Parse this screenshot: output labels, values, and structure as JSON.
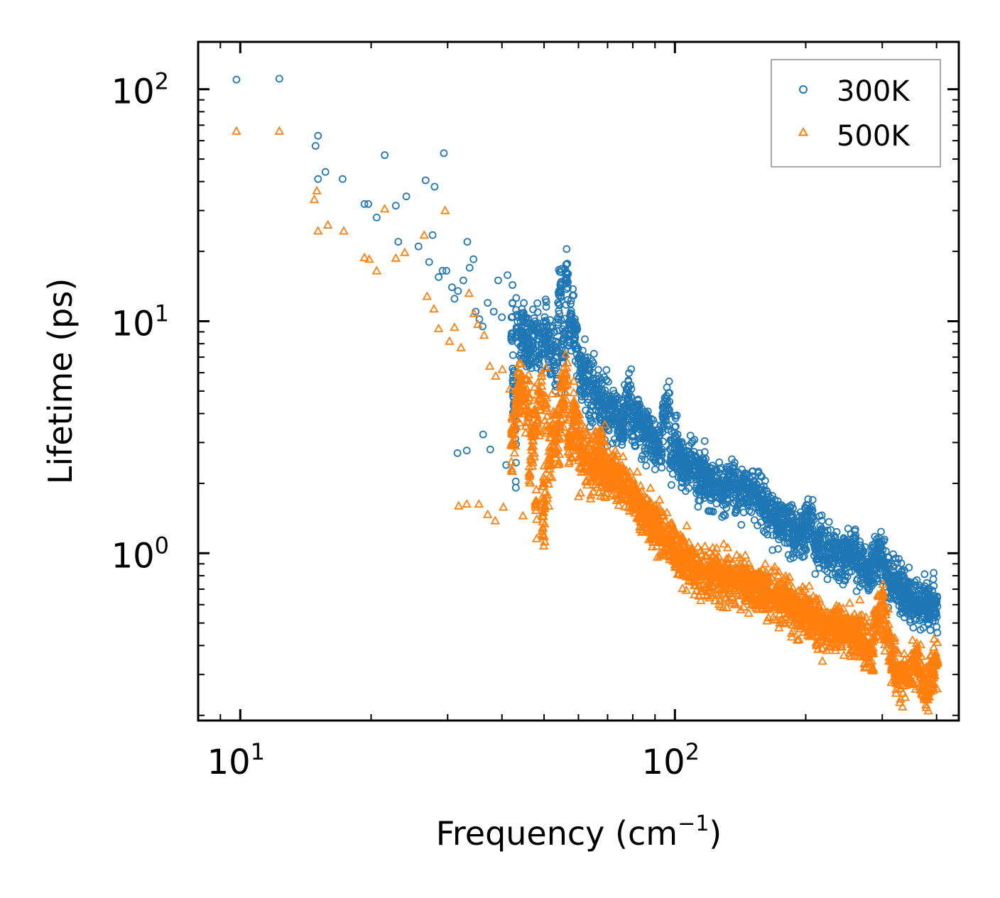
{
  "chart_data": {
    "type": "scatter",
    "xscale": "log",
    "yscale": "log",
    "xlim": [
      8,
      450
    ],
    "ylim": [
      0.19,
      160
    ],
    "xlabel": "Frequency (cm",
    "xlabel_sup": "−1",
    "xlabel_end": ")",
    "ylabel": "Lifetime (ps)",
    "x_ticks": [
      {
        "value": 10,
        "base": "10",
        "exp": "1"
      },
      {
        "value": 100,
        "base": "10",
        "exp": "2"
      }
    ],
    "y_ticks": [
      {
        "value": 1,
        "base": "10",
        "exp": "0"
      },
      {
        "value": 10,
        "base": "10",
        "exp": "1"
      },
      {
        "value": 100,
        "base": "10",
        "exp": "2"
      }
    ],
    "legend_position": "top-right",
    "series": [
      {
        "name": "300K",
        "marker": "circle",
        "color": "#1f77b4",
        "points": [
          [
            9.8,
            110
          ],
          [
            12.3,
            111
          ],
          [
            14.9,
            57
          ],
          [
            15.1,
            63
          ],
          [
            15.1,
            41
          ],
          [
            15.7,
            44
          ],
          [
            17.2,
            41
          ],
          [
            19.3,
            32
          ],
          [
            19.7,
            32
          ],
          [
            20.6,
            28
          ],
          [
            21.5,
            52
          ],
          [
            22.8,
            31.5
          ],
          [
            23.1,
            22
          ],
          [
            24.1,
            34.5
          ],
          [
            25.7,
            21
          ],
          [
            26.7,
            40.5
          ],
          [
            27.2,
            18
          ],
          [
            27.7,
            23.5
          ],
          [
            28.0,
            38
          ],
          [
            28.6,
            15.5
          ],
          [
            29.2,
            16.5
          ],
          [
            29.4,
            53
          ],
          [
            29.8,
            16.5
          ],
          [
            30.7,
            14
          ],
          [
            31.1,
            12.5
          ],
          [
            31.7,
            13.5
          ],
          [
            32.6,
            15
          ],
          [
            33.3,
            22
          ],
          [
            33.7,
            17
          ],
          [
            34.4,
            18.5
          ],
          [
            34.8,
            11
          ],
          [
            35.5,
            10.2
          ],
          [
            36.1,
            9.5
          ],
          [
            37.1,
            12
          ],
          [
            38.3,
            11
          ],
          [
            39.2,
            15
          ],
          [
            40.0,
            10.4
          ],
          [
            41.2,
            15.8
          ],
          [
            42.3,
            12
          ],
          [
            43.6,
            8.9
          ],
          [
            44.3,
            7.8
          ],
          [
            45.6,
            9.2
          ],
          [
            47.1,
            8.1
          ],
          [
            48.3,
            8.9
          ],
          [
            49.6,
            7.3
          ],
          [
            50.8,
            9.5
          ],
          [
            52.4,
            7.5
          ],
          [
            53.7,
            6.6
          ],
          [
            54.8,
            14.8
          ],
          [
            55.9,
            8.6
          ],
          [
            56.8,
            16
          ],
          [
            57.9,
            10.2
          ],
          [
            59.4,
            7.6
          ],
          [
            61.2,
            5.5
          ],
          [
            63.1,
            5.4
          ],
          [
            65.2,
            4.8
          ],
          [
            67.0,
            4.6
          ],
          [
            69.1,
            4.2
          ],
          [
            71.8,
            4.1
          ],
          [
            74.5,
            3.9
          ],
          [
            77.3,
            3.8
          ],
          [
            79.4,
            5.1
          ],
          [
            81.7,
            3.6
          ],
          [
            84.2,
            3.3
          ],
          [
            87.8,
            3.1
          ],
          [
            90.3,
            3.0
          ],
          [
            93.4,
            2.8
          ],
          [
            97.2,
            4.5
          ],
          [
            99.8,
            2.6
          ],
          [
            103.6,
            2.3
          ],
          [
            107.1,
            2.3
          ],
          [
            111.2,
            2.6
          ],
          [
            115.8,
            2.1
          ],
          [
            120.3,
            2.0
          ],
          [
            126.4,
            1.9
          ],
          [
            131.2,
            1.8
          ],
          [
            137.5,
            2.1
          ],
          [
            143.7,
            1.9
          ],
          [
            150.4,
            1.8
          ],
          [
            157.6,
            1.7
          ],
          [
            165.2,
            1.5
          ],
          [
            172.8,
            1.4
          ],
          [
            181.3,
            1.3
          ],
          [
            189.4,
            1.2
          ],
          [
            198.6,
            1.15
          ],
          [
            207.5,
            1.45
          ],
          [
            215.2,
            1.0
          ],
          [
            224.8,
            0.95
          ],
          [
            236.7,
            1.03
          ],
          [
            249.3,
            0.98
          ],
          [
            261.4,
            1.0
          ],
          [
            273.6,
            0.88
          ],
          [
            282.5,
            0.82
          ],
          [
            292.8,
            0.95
          ],
          [
            298.6,
            1.06
          ],
          [
            303.3,
            0.9
          ],
          [
            309.5,
            0.8
          ],
          [
            318.7,
            0.72
          ],
          [
            328.6,
            0.73
          ],
          [
            341.3,
            0.68
          ],
          [
            354.2,
            0.6
          ],
          [
            365.8,
            0.6
          ],
          [
            373.4,
            0.58
          ],
          [
            381.6,
            0.65
          ],
          [
            388.5,
            0.6
          ],
          [
            395.3,
            0.62
          ],
          [
            401.7,
            0.59
          ],
          [
            43.1,
            2.95
          ],
          [
            40.9,
            2.4
          ],
          [
            37.6,
            2.8
          ],
          [
            36.2,
            3.25
          ],
          [
            33.2,
            2.77
          ],
          [
            31.6,
            2.7
          ]
        ]
      },
      {
        "name": "500K",
        "marker": "triangle",
        "color": "#ff7f0e",
        "points": [
          [
            9.8,
            66
          ],
          [
            12.3,
            66
          ],
          [
            14.8,
            33.5
          ],
          [
            15.0,
            36.5
          ],
          [
            15.1,
            24.5
          ],
          [
            15.9,
            26
          ],
          [
            17.3,
            24.5
          ],
          [
            19.3,
            18.8
          ],
          [
            19.8,
            18.5
          ],
          [
            20.6,
            16.5
          ],
          [
            21.5,
            30.5
          ],
          [
            22.8,
            18.7
          ],
          [
            23.9,
            19.8
          ],
          [
            26.5,
            23.5
          ],
          [
            26.9,
            12.8
          ],
          [
            27.9,
            11.3
          ],
          [
            28.6,
            9.3
          ],
          [
            29.6,
            30
          ],
          [
            30.3,
            8.2
          ],
          [
            31.1,
            9.4
          ],
          [
            32.2,
            7.7
          ],
          [
            33.6,
            13.2
          ],
          [
            34.5,
            10.8
          ],
          [
            35.2,
            9.7
          ],
          [
            36.4,
            8.7
          ],
          [
            37.5,
            6.4
          ],
          [
            38.7,
            5.8
          ],
          [
            40.1,
            6.2
          ],
          [
            41.7,
            5.1
          ],
          [
            43.4,
            4.7
          ],
          [
            44.6,
            5.3
          ],
          [
            46.2,
            4.1
          ],
          [
            47.7,
            3.6
          ],
          [
            49.4,
            4.9
          ],
          [
            50.8,
            3.9
          ],
          [
            52.5,
            3.4
          ],
          [
            54.3,
            3.1
          ],
          [
            56.7,
            5.6
          ],
          [
            58.1,
            3.0
          ],
          [
            60.3,
            2.8
          ],
          [
            62.8,
            2.6
          ],
          [
            65.2,
            2.4
          ],
          [
            67.4,
            2.6
          ],
          [
            70.1,
            2.3
          ],
          [
            72.8,
            2.1
          ],
          [
            75.3,
            2.0
          ],
          [
            78.6,
            1.85
          ],
          [
            81.4,
            1.7
          ],
          [
            84.9,
            1.5
          ],
          [
            88.1,
            1.4
          ],
          [
            91.7,
            1.3
          ],
          [
            95.4,
            1.15
          ],
          [
            99.3,
            1.05
          ],
          [
            103.8,
            0.95
          ],
          [
            108.4,
            0.9
          ],
          [
            113.7,
            0.85
          ],
          [
            119.2,
            0.82
          ],
          [
            125.6,
            0.8
          ],
          [
            131.8,
            0.75
          ],
          [
            138.2,
            0.74
          ],
          [
            145.3,
            0.78
          ],
          [
            152.6,
            0.72
          ],
          [
            160.1,
            0.7
          ],
          [
            168.4,
            0.66
          ],
          [
            176.3,
            0.62
          ],
          [
            184.9,
            0.6
          ],
          [
            193.2,
            0.57
          ],
          [
            202.6,
            0.55
          ],
          [
            210.4,
            0.52
          ],
          [
            219.6,
            0.48
          ],
          [
            229.3,
            0.47
          ],
          [
            239.7,
            0.5
          ],
          [
            251.2,
            0.47
          ],
          [
            263.4,
            0.44
          ],
          [
            275.8,
            0.4
          ],
          [
            286.3,
            0.37
          ],
          [
            295.2,
            0.55
          ],
          [
            302.4,
            0.66
          ],
          [
            308.7,
            0.48
          ],
          [
            315.6,
            0.33
          ],
          [
            324.2,
            0.3
          ],
          [
            335.7,
            0.28
          ],
          [
            349.8,
            0.31
          ],
          [
            362.4,
            0.35
          ],
          [
            371.2,
            0.3
          ],
          [
            379.5,
            0.25
          ],
          [
            384.3,
            0.24
          ],
          [
            392.6,
            0.33
          ],
          [
            398.5,
            0.36
          ],
          [
            402.1,
            0.34
          ],
          [
            31.8,
            1.6
          ],
          [
            33.2,
            1.63
          ],
          [
            35.4,
            1.63
          ],
          [
            37.1,
            1.47
          ],
          [
            38.6,
            1.38
          ],
          [
            40.3,
            1.58
          ],
          [
            44.7,
            1.45
          ],
          [
            48.1,
            1.4
          ],
          [
            50.2,
            1.6
          ]
        ],
        "cloud_only": false
      }
    ]
  },
  "legend": {
    "items": [
      {
        "label": "300K",
        "color": "#1f77b4",
        "marker": "circle"
      },
      {
        "label": "500K",
        "color": "#ff7f0e",
        "marker": "triangle"
      }
    ]
  }
}
